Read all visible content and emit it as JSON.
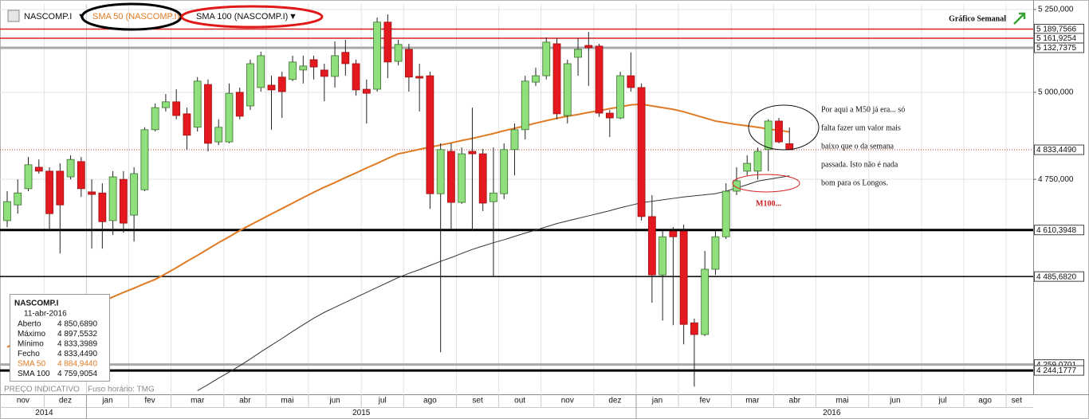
{
  "chart_data": {
    "type": "candlestick",
    "title": "Gráfico Semanal",
    "symbol": "NASCOMP.I",
    "log_scale": true,
    "grid": true,
    "up_color": "#8fdf7d",
    "down_color": "#e3191f",
    "categories": [
      "nov",
      null,
      null,
      null,
      "dez",
      null,
      null,
      null,
      "jan",
      null,
      null,
      null,
      "fev",
      null,
      null,
      null,
      "mar",
      null,
      null,
      null,
      null,
      "abr",
      null,
      null,
      null,
      "mai",
      null,
      null,
      null,
      "jun",
      null,
      null,
      null,
      null,
      "jul",
      null,
      null,
      null,
      "ago",
      null,
      null,
      null,
      null,
      "set",
      null,
      null,
      null,
      "out",
      null,
      null,
      null,
      "nov",
      null,
      null,
      null,
      null,
      "dez",
      null,
      null,
      null,
      "jan",
      null,
      null,
      null,
      "fev",
      null,
      null,
      null,
      null,
      "mar",
      null,
      null,
      null,
      "abr",
      null,
      null,
      null,
      "mai",
      null,
      null,
      null,
      null,
      "jun",
      null,
      null,
      null,
      null,
      "jul",
      null,
      null,
      null,
      "ago",
      null,
      null,
      null,
      "set",
      null
    ],
    "years": [
      "2014",
      null,
      null,
      null,
      null,
      null,
      null,
      null,
      "2015",
      null,
      null,
      null,
      null,
      null,
      null,
      null,
      null,
      null,
      null,
      null,
      null,
      null,
      null,
      null,
      null,
      null,
      null,
      null,
      null,
      null,
      null,
      null,
      null,
      null,
      null,
      null,
      null,
      null,
      null,
      null,
      null,
      null,
      null,
      null,
      null,
      null,
      null,
      null,
      null,
      null,
      null,
      null,
      null,
      null,
      null,
      null,
      null,
      null,
      null,
      null,
      "2016",
      null,
      null,
      null,
      null,
      null,
      null,
      null,
      null,
      null,
      null,
      null,
      null,
      null,
      null,
      null,
      null,
      null,
      null,
      null,
      null,
      null,
      null,
      null,
      null,
      null,
      null,
      null,
      null,
      null,
      null,
      null,
      null,
      null,
      null,
      null,
      null
    ],
    "open": [
      4636,
      4679,
      4724,
      4784,
      4773,
      4773,
      4757,
      4800,
      4715,
      4712,
      4636,
      4750,
      4651,
      4721,
      4891,
      4955,
      4972,
      4937,
      4898,
      5023,
      4856,
      4856,
      5000,
      4960,
      5014,
      5021,
      5045,
      5038,
      5066,
      5097,
      5066,
      5047,
      5119,
      5085,
      5009,
      5009,
      5211,
      5092,
      5128,
      5047,
      5049,
      4710,
      4829,
      4686,
      4829,
      4822,
      4688,
      4710,
      4834,
      4891,
      5030,
      5049,
      5145,
      4932,
      5104,
      5140,
      5138,
      4939,
      4925,
      5049,
      5014,
      4647,
      4490,
      4607,
      4607,
      4365,
      4335,
      4505,
      4592,
      4717,
      4773,
      4773,
      4834,
      4916,
      4850.689,
      null,
      null,
      null,
      null,
      null,
      null,
      null,
      null,
      null,
      null,
      null,
      null,
      null,
      null,
      null,
      null,
      null,
      null,
      null,
      null,
      null,
      null
    ],
    "high": [
      4717,
      4750,
      4813,
      4806,
      4784,
      4795,
      4818,
      4813,
      4750,
      4739,
      4773,
      4773,
      4784,
      4898,
      4967,
      4995,
      5009,
      4955,
      5045,
      5038,
      4921,
      5026,
      5014,
      5097,
      5121,
      5049,
      5061,
      5109,
      5109,
      5109,
      5085,
      5152,
      5157,
      5097,
      5038,
      5225,
      5235,
      5157,
      5145,
      5085,
      5061,
      4852,
      4852,
      4840,
      4955,
      4836,
      4840,
      4852,
      4909,
      5049,
      5073,
      5164,
      5162,
      5097,
      5162,
      5181,
      5145,
      4948,
      5061,
      5119,
      5026,
      4706,
      4607,
      4618,
      4625,
      4376,
      4554,
      4607,
      4739,
      4784,
      4818,
      4840,
      4921,
      4925,
      4897.5532,
      null,
      null,
      null,
      null,
      null,
      null,
      null,
      null,
      null,
      null,
      null,
      null,
      null,
      null,
      null,
      null,
      null,
      null,
      null,
      null,
      null,
      null
    ],
    "low": [
      4618,
      4655,
      4717,
      4766,
      4607,
      4547,
      4750,
      4701,
      4560,
      4560,
      4597,
      4603,
      4579,
      4717,
      4886,
      4944,
      4921,
      4833,
      4886,
      4829,
      4847,
      4852,
      4921,
      4948,
      5002,
      4891,
      4925,
      5033,
      5026,
      5038,
      4974,
      5014,
      5049,
      4990,
      4909,
      5002,
      5042,
      5080,
      5002,
      4944,
      4668,
      4290,
      4612,
      4682,
      4607,
      4662,
      4484,
      4695,
      4761,
      4863,
      5019,
      5038,
      4921,
      4909,
      5049,
      5019,
      4928,
      4870,
      4921,
      5002,
      4636,
      4417,
      4371,
      4359,
      4310,
      4204,
      4331,
      4490,
      4586,
      4706,
      4761,
      4750,
      4773,
      4852,
      4833.3989,
      null,
      null,
      null,
      null,
      null,
      null,
      null,
      null,
      null,
      null,
      null,
      null,
      null,
      null,
      null,
      null,
      null,
      null,
      null,
      null,
      null,
      null
    ],
    "close": [
      4688,
      4712,
      4791,
      4773,
      4655,
      4679,
      4806,
      4724,
      4708,
      4633,
      4757,
      4629,
      4766,
      4891,
      4955,
      4972,
      4932,
      4875,
      5033,
      4852,
      4898,
      4997,
      4930,
      5085,
      5109,
      5007,
      5002,
      5090,
      5078,
      5075,
      5047,
      5109,
      5085,
      5007,
      4997,
      5211,
      5090,
      5143,
      5045,
      5042,
      4710,
      4834,
      4686,
      4822,
      4822,
      4684,
      4712,
      4834,
      4891,
      5033,
      5049,
      5150,
      4937,
      5085,
      5128,
      5133,
      4939,
      4925,
      5049,
      5014,
      4647,
      4490,
      4592,
      4592,
      4361,
      4335,
      4505,
      4592,
      4717,
      4746,
      4795,
      4829,
      4916,
      4856,
      4833.449,
      null,
      null,
      null,
      null,
      null,
      null,
      null,
      null,
      null,
      null,
      null,
      null,
      null,
      null,
      null,
      null,
      null,
      null,
      null,
      null,
      null,
      null
    ],
    "series": [
      {
        "name": "SMA 50 (NASCOMP.I)",
        "color": "#e07b24",
        "values": [
          4303,
          4317,
          4330,
          4344,
          4357,
          4371,
          4384,
          4398,
          4409,
          4420,
          4432,
          4444,
          4455,
          4467,
          4478,
          4493,
          4509,
          4526,
          4542,
          4559,
          4576,
          4592,
          4609,
          4624,
          4639,
          4654,
          4669,
          4684,
          4699,
          4714,
          4728,
          4741,
          4755,
          4768,
          4782,
          4795,
          4809,
          4822,
          4828,
          4835,
          4841,
          4847,
          4853,
          4860,
          4866,
          4873,
          4880,
          4888,
          4895,
          4902,
          4910,
          4917,
          4924,
          4930,
          4935,
          4941,
          4946,
          4952,
          4957,
          4963,
          4965,
          4960,
          4955,
          4950,
          4943,
          4934,
          4925,
          4916,
          4911,
          4906,
          4902,
          4898,
          4893,
          4889,
          4884.944,
          null,
          null,
          null,
          null,
          null,
          null,
          null,
          null,
          null,
          null,
          null,
          null,
          null,
          null,
          null,
          null,
          null,
          null,
          null,
          null,
          null,
          null
        ]
      },
      {
        "name": "SMA 100 (NASCOMP.I)",
        "color": "#333333",
        "values": [
          null,
          null,
          null,
          null,
          null,
          null,
          null,
          null,
          null,
          null,
          null,
          null,
          null,
          null,
          null,
          null,
          null,
          null,
          4194,
          4209,
          4225,
          4240,
          4256,
          4273,
          4291,
          4308,
          4325,
          4343,
          4360,
          4377,
          4392,
          4405,
          4418,
          4431,
          4444,
          4457,
          4470,
          4483,
          4494,
          4504,
          4515,
          4526,
          4536,
          4547,
          4558,
          4567,
          4576,
          4584,
          4593,
          4602,
          4610,
          4619,
          4628,
          4635,
          4642,
          4649,
          4656,
          4663,
          4671,
          4678,
          4685,
          4689,
          4693,
          4697,
          4701,
          4704,
          4707,
          4710,
          4717,
          4726,
          4735,
          4745,
          4750,
          4755,
          4759.9054,
          null,
          null,
          null,
          null,
          null,
          null,
          null,
          null,
          null,
          null,
          null,
          null,
          null,
          null,
          null,
          null,
          null,
          null,
          null,
          null,
          null,
          null
        ]
      }
    ],
    "ylim": [
      4185,
      5267
    ],
    "yticks": [
      {
        "value": 5250,
        "label": "5 250,000"
      },
      {
        "value": 5000,
        "label": "5 000,000"
      },
      {
        "value": 4750,
        "label": "4 750,000"
      }
    ],
    "levels": [
      {
        "value": 5189.7566,
        "label": "5 189,7566",
        "color": "#d42020"
      },
      {
        "value": 5161.9254,
        "label": "5 161,9254",
        "color": "#d42020"
      },
      {
        "value": 5132.7375,
        "label": "5 132,7375",
        "color": "#a9a9a9"
      },
      {
        "value": 4610.3948,
        "label": "4 610,3948",
        "color": "#000000"
      },
      {
        "value": 4485.682,
        "label": "4 485,6820",
        "color": "#000000"
      },
      {
        "value": 4259.0701,
        "label": "4 259,0701",
        "color": "#a9a9a9"
      },
      {
        "value": 4244.1777,
        "label": "4 244,1777",
        "color": "#000000"
      }
    ],
    "current_price": {
      "value": 4833.449,
      "label": "4 833,4490",
      "color": "#c0392b"
    },
    "info_box": {
      "date": "11-abr-2016",
      "rows": [
        {
          "label": "Aberto",
          "value": "4 850,6890"
        },
        {
          "label": "Máximo",
          "value": "4 897,5532"
        },
        {
          "label": "Mínimo",
          "value": "4 833,3989"
        },
        {
          "label": "Fecho",
          "value": "4 833,4490"
        },
        {
          "label": "SMA 50",
          "value": "4 884,9440"
        },
        {
          "label": "SMA 100",
          "value": "4 759,9054"
        }
      ]
    },
    "annotation": {
      "lines": [
        "Por aqui a M50 já era... só",
        "falta fazer um valor mais",
        "baixo que o da semana",
        "passada. Isto não é nada",
        "bom para os Longos."
      ],
      "marker": "M100..."
    },
    "footer": {
      "note": "PREÇO INDICATIVO",
      "timezone": "Fuso horário: TMG"
    }
  }
}
